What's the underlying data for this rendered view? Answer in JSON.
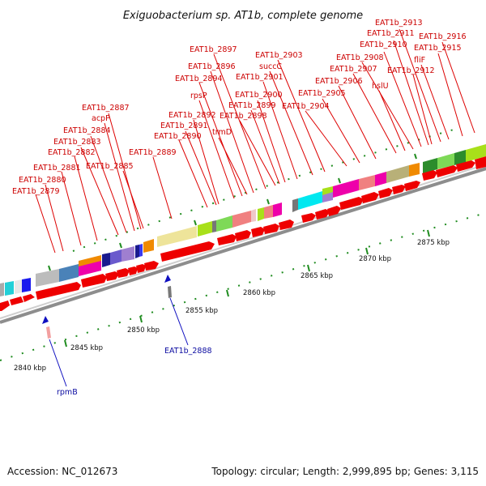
{
  "title": "Exiguobacterium sp. AT1b, complete genome",
  "footer": {
    "accession": "Accession: NC_012673",
    "topology": "Topology: circular; Length: 2,999,895 bp; Genes: 3,115"
  },
  "scale_ticks": [
    {
      "label": "2840 kbp"
    },
    {
      "label": "2845 kbp"
    },
    {
      "label": "2850 kbp"
    },
    {
      "label": "2855 kbp"
    },
    {
      "label": "2860 kbp"
    },
    {
      "label": "2865 kbp"
    },
    {
      "label": "2870 kbp"
    },
    {
      "label": "2875 kbp"
    }
  ],
  "forward_genes": [
    "EAT1b_2879",
    "EAT1b_2880",
    "EAT1b_2881",
    "EAT1b_2882",
    "EAT1b_2883",
    "EAT1b_2884",
    "acpP",
    "EAT1b_2887",
    "EAT1b_2885",
    "EAT1b_2889",
    "EAT1b_2890",
    "EAT1b_2891",
    "EAT1b_2892",
    "rpsP",
    "EAT1b_2894",
    "trmD",
    "EAT1b_2896",
    "EAT1b_2897",
    "EAT1b_2898",
    "EAT1b_2899",
    "EAT1b_2900",
    "EAT1b_2901",
    "succC",
    "EAT1b_2903",
    "EAT1b_2904",
    "EAT1b_2905",
    "EAT1b_2906",
    "EAT1b_2907",
    "hslU",
    "EAT1b_2908",
    "EAT1b_2910",
    "EAT1b_2911",
    "EAT1b_2912",
    "EAT1b_2913",
    "fliF",
    "EAT1b_2915",
    "EAT1b_2916"
  ],
  "reverse_genes": [
    "rpmB",
    "EAT1b_2888"
  ],
  "colors": {
    "forward_gene": "#cc0000",
    "reverse_gene": "#0a0aa0",
    "scale_tick": "#1f8c1f",
    "backbone": "#9a9a9a",
    "cds_arrow": "#ee0000"
  }
}
